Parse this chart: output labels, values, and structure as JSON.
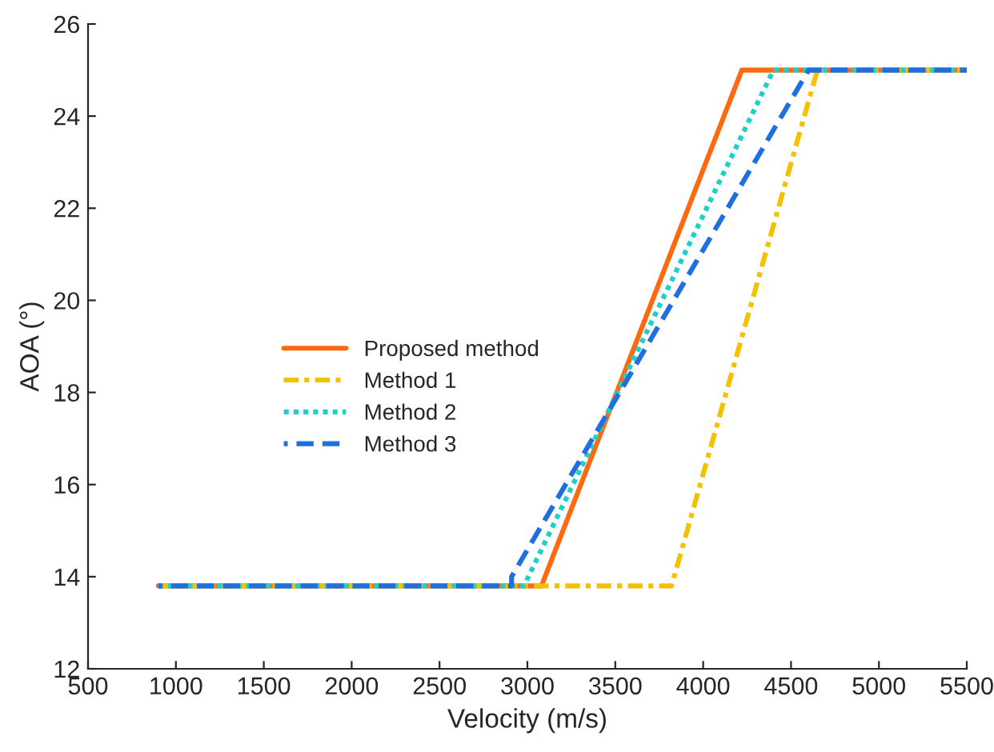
{
  "chart_data": {
    "type": "line",
    "xlabel": "Velocity (m/s)",
    "ylabel": "AOA (°)",
    "xlim": [
      500,
      5500
    ],
    "xticks": [
      500,
      1000,
      1500,
      2000,
      2500,
      3000,
      3500,
      4000,
      4500,
      5000,
      5500
    ],
    "ylim": [
      12,
      26
    ],
    "yticks": [
      12,
      14,
      16,
      18,
      20,
      22,
      24,
      26
    ],
    "grid": false,
    "legend": "left",
    "marker": "none",
    "series": [
      {
        "name": "Proposed method",
        "color": "#ff6a10",
        "line_style": "solid",
        "x": [
          900,
          3080,
          4220,
          5500
        ],
        "values": [
          13.8,
          13.8,
          25,
          25
        ]
      },
      {
        "name": "Method 1",
        "color": "#f2c100",
        "line_style": "dashdot",
        "x": [
          900,
          3820,
          4650,
          5500
        ],
        "values": [
          13.8,
          13.8,
          25,
          25
        ]
      },
      {
        "name": "Method 2",
        "color": "#1fcfc9",
        "line_style": "dotted",
        "x": [
          900,
          2980,
          4400,
          5500
        ],
        "values": [
          13.8,
          13.8,
          25,
          25
        ]
      },
      {
        "name": "Method 3",
        "color": "#1f6fe0",
        "line_style": "dashed",
        "x": [
          900,
          2910,
          2910,
          4600,
          5500
        ],
        "values": [
          13.8,
          13.8,
          14.0,
          25,
          25
        ]
      }
    ]
  }
}
